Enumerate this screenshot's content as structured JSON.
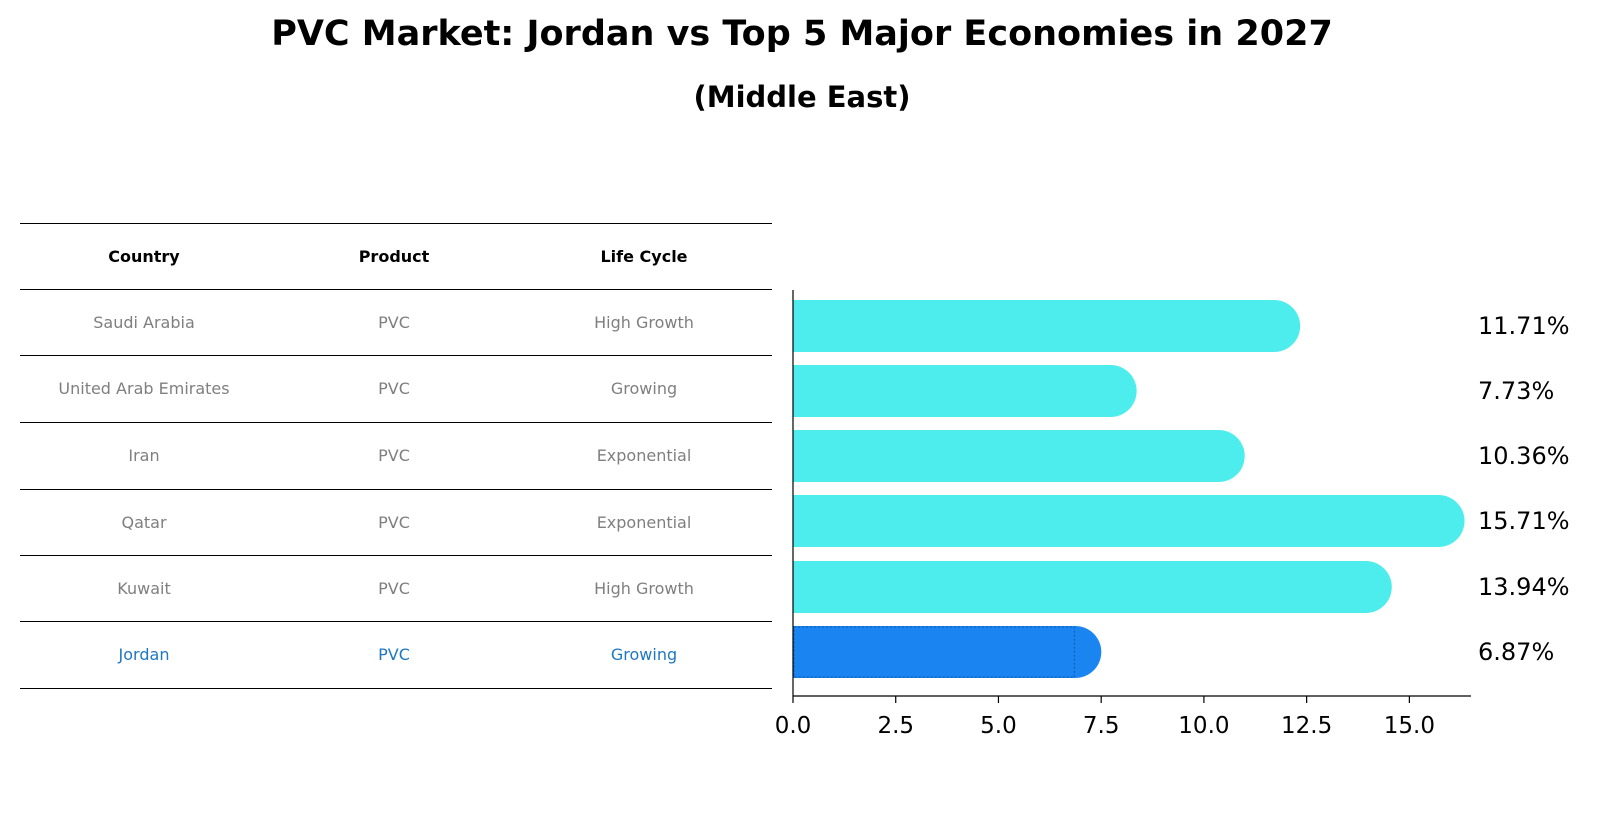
{
  "title": "PVC Market: Jordan vs Top 5 Major Economies in 2027",
  "subtitle": "(Middle East)",
  "table": {
    "headers": [
      "Country",
      "Product",
      "Life Cycle"
    ],
    "rows": [
      [
        "Saudi Arabia",
        "PVC",
        "High Growth"
      ],
      [
        "United Arab Emirates",
        "PVC",
        "Growing"
      ],
      [
        "Iran",
        "PVC",
        "Exponential"
      ],
      [
        "Qatar",
        "PVC",
        "Exponential"
      ],
      [
        "Kuwait",
        "PVC",
        "High Growth"
      ],
      [
        "Jordan",
        "PVC",
        "Growing"
      ]
    ],
    "highlight_row": "Jordan"
  },
  "chart_data": {
    "type": "bar",
    "orientation": "horizontal",
    "title": "PVC Market: Jordan vs Top 5 Major Economies in 2027",
    "subtitle": "(Middle East)",
    "categories": [
      "Saudi Arabia",
      "United Arab Emirates",
      "Iran",
      "Qatar",
      "Kuwait",
      "Jordan"
    ],
    "values": [
      11.71,
      7.73,
      10.36,
      15.71,
      13.94,
      6.87
    ],
    "value_labels": [
      "11.71%",
      "7.73%",
      "10.36%",
      "15.71%",
      "13.94%",
      "6.87%"
    ],
    "xlim": [
      0,
      16.5
    ],
    "xticks": [
      0.0,
      2.5,
      5.0,
      7.5,
      10.0,
      12.5,
      15.0
    ],
    "xtick_labels": [
      "0.0",
      "2.5",
      "5.0",
      "7.5",
      "10.0",
      "12.5",
      "15.0"
    ],
    "xlabel": "",
    "ylabel": "",
    "grid": false,
    "colors": {
      "default": "#4eeded",
      "highlight": "#1a85f0",
      "highlight_text": "#1f77c2",
      "muted_text": "#7f7f7f"
    }
  }
}
